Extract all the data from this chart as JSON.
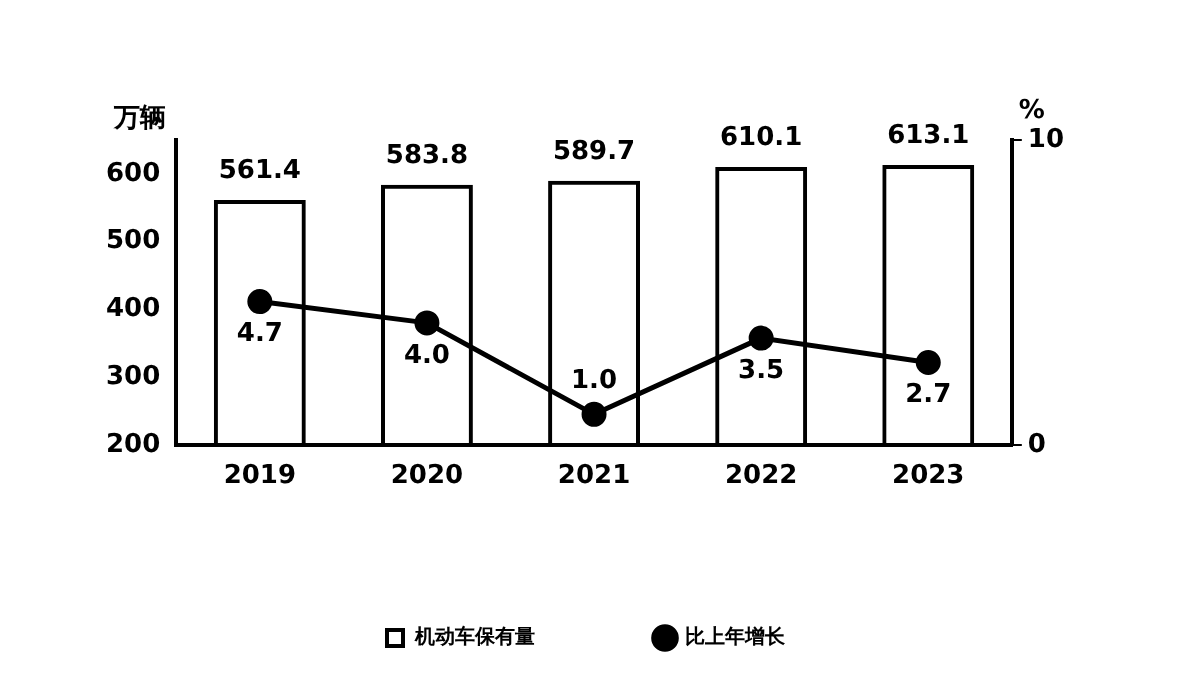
{
  "chart_data": {
    "type": "bar",
    "categories": [
      "2019",
      "2020",
      "2021",
      "2022",
      "2023"
    ],
    "ylabel": "万辆",
    "y2label": "%",
    "ylim": [
      200,
      650
    ],
    "yticks": [
      200,
      300,
      400,
      500,
      600
    ],
    "y2lim": [
      0,
      10
    ],
    "y2ticks": [
      0,
      10
    ],
    "grid": false,
    "legend": "bottom",
    "data_labels": true,
    "marker": "circle",
    "series": [
      {
        "name": "机动车保有量",
        "color": "#000000",
        "values": [
          561.4,
          583.8,
          589.7,
          610.1,
          613.1
        ]
      },
      {
        "name": "比上年增长",
        "type": "line",
        "axis": "y2",
        "color": "#000000",
        "values": [
          4.7,
          4.0,
          1.0,
          3.5,
          2.7
        ],
        "value_labels": [
          "4.7",
          "4.0",
          "1.0",
          "3.5",
          "2.7"
        ]
      }
    ]
  }
}
